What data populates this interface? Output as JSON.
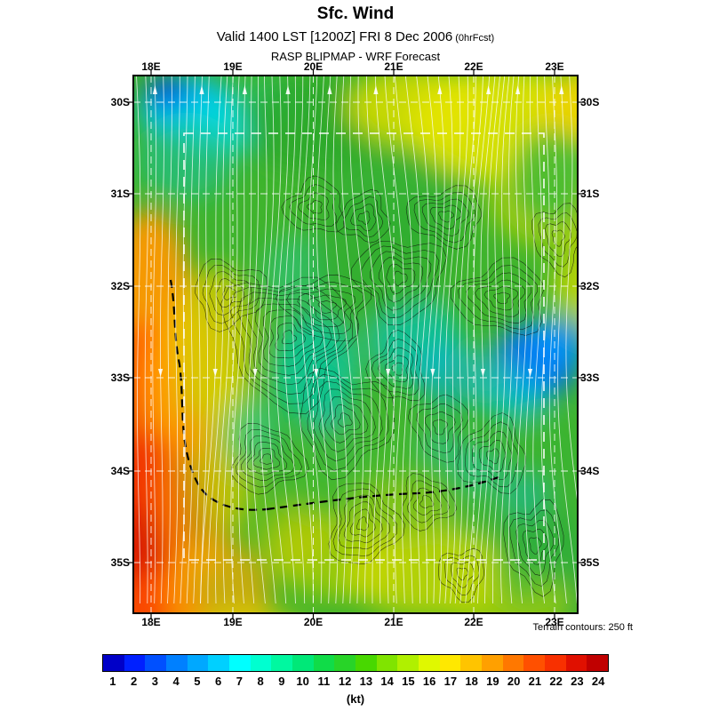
{
  "header": {
    "title": "Sfc. Wind",
    "valid_main": "Valid 1400 LST [1200Z] FRI 8 Dec 2006",
    "valid_suffix": "(0hrFcst)",
    "model": "RASP BLIPMAP - WRF Forecast"
  },
  "map": {
    "lon_labels": [
      "18E",
      "19E",
      "20E",
      "21E",
      "22E",
      "23E"
    ],
    "lat_labels": [
      "30S",
      "31S",
      "32S",
      "33S",
      "34S",
      "35S"
    ],
    "terrain_note": "Terrain contours: 250 ft"
  },
  "colorbar": {
    "values": [
      "1",
      "2",
      "3",
      "4",
      "5",
      "6",
      "7",
      "8",
      "9",
      "10",
      "11",
      "12",
      "13",
      "14",
      "15",
      "16",
      "17",
      "18",
      "19",
      "20",
      "21",
      "22",
      "23",
      "24"
    ],
    "colors": [
      "#0000c8",
      "#0020ff",
      "#0050ff",
      "#0080ff",
      "#00a8ff",
      "#00d0ff",
      "#00ffff",
      "#00ffd0",
      "#00f8a0",
      "#00e878",
      "#10dc48",
      "#28d428",
      "#48d800",
      "#80e400",
      "#b0f000",
      "#e0f800",
      "#ffe800",
      "#ffc400",
      "#ffa000",
      "#ff7800",
      "#ff5000",
      "#f83000",
      "#e01000",
      "#c00000"
    ],
    "unit": "(kt)"
  }
}
